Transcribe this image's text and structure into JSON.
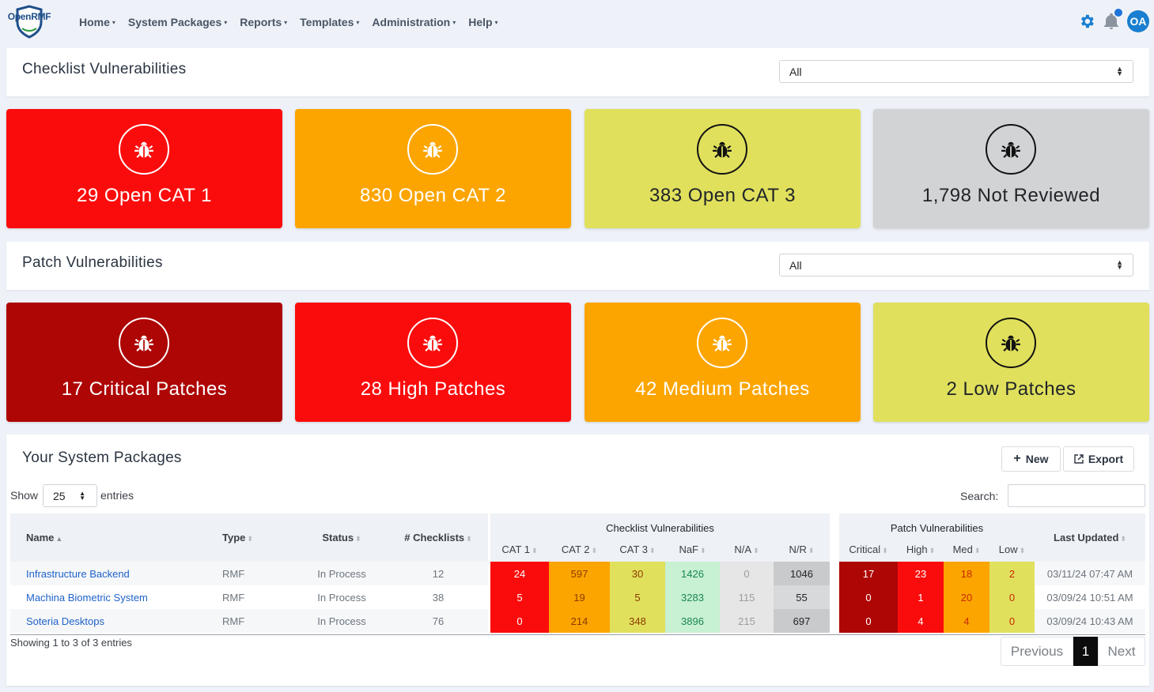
{
  "app": {
    "logo_open": "Open",
    "logo_rmf": "RMF",
    "avatar": "OA"
  },
  "nav": [
    {
      "label": "Home"
    },
    {
      "label": "System Packages"
    },
    {
      "label": "Reports"
    },
    {
      "label": "Templates"
    },
    {
      "label": "Administration"
    },
    {
      "label": "Help"
    }
  ],
  "checklist": {
    "title": "Checklist Vulnerabilities",
    "filter": "All",
    "cards": [
      {
        "label": "29 Open CAT 1",
        "bg": "#fb0c0c",
        "fg": "#ffffff"
      },
      {
        "label": "830 Open CAT 2",
        "bg": "#fca500",
        "fg": "#ffffff"
      },
      {
        "label": "383 Open CAT 3",
        "bg": "#e0e05d",
        "fg": "#212529"
      },
      {
        "label": "1,798 Not Reviewed",
        "bg": "#d1d3d4",
        "fg": "#212529"
      }
    ]
  },
  "patch": {
    "title": "Patch Vulnerabilities",
    "filter": "All",
    "cards": [
      {
        "label": "17 Critical Patches",
        "bg": "#ae0505",
        "fg": "#ffffff"
      },
      {
        "label": "28 High Patches",
        "bg": "#fb0c0c",
        "fg": "#ffffff"
      },
      {
        "label": "42 Medium Patches",
        "bg": "#fca500",
        "fg": "#ffffff"
      },
      {
        "label": "2 Low Patches",
        "bg": "#e0e05d",
        "fg": "#212529"
      }
    ]
  },
  "packages": {
    "title": "Your System Packages",
    "new_label": "New",
    "export_label": "Export",
    "show_label": "Show",
    "entries_value": "25",
    "entries_label": "entries",
    "search_label": "Search:",
    "group_checklist": "Checklist Vulnerabilities",
    "group_patch": "Patch Vulnerabilities",
    "columns": {
      "name": "Name",
      "type": "Type",
      "status": "Status",
      "checklists": "# Checklists",
      "cat1": "CAT 1",
      "cat2": "CAT 2",
      "cat3": "CAT 3",
      "naf": "NaF",
      "na": "N/A",
      "nr": "N/R",
      "critical": "Critical",
      "high": "High",
      "med": "Med",
      "low": "Low",
      "updated": "Last Updated"
    },
    "rows": [
      {
        "name": "Infrastructure Backend",
        "type": "RMF",
        "status": "In Process",
        "checklists": "12",
        "cat1": "24",
        "cat2": "597",
        "cat3": "30",
        "naf": "1426",
        "na": "0",
        "nr": "1046",
        "critical": "17",
        "high": "23",
        "med": "18",
        "low": "2",
        "updated": "03/11/24 07:47 AM"
      },
      {
        "name": "Machina Biometric System",
        "type": "RMF",
        "status": "In Process",
        "checklists": "38",
        "cat1": "5",
        "cat2": "19",
        "cat3": "5",
        "naf": "3283",
        "na": "115",
        "nr": "55",
        "critical": "0",
        "high": "1",
        "med": "20",
        "low": "0",
        "updated": "03/09/24 10:51 AM"
      },
      {
        "name": "Soteria Desktops",
        "type": "RMF",
        "status": "In Process",
        "checklists": "76",
        "cat1": "0",
        "cat2": "214",
        "cat3": "348",
        "naf": "3896",
        "na": "215",
        "nr": "697",
        "critical": "0",
        "high": "4",
        "med": "4",
        "low": "0",
        "updated": "03/09/24 10:43 AM"
      }
    ],
    "info": "Showing 1 to 3 of 3 entries",
    "pagination": {
      "previous": "Previous",
      "current": "1",
      "next": "Next"
    }
  }
}
